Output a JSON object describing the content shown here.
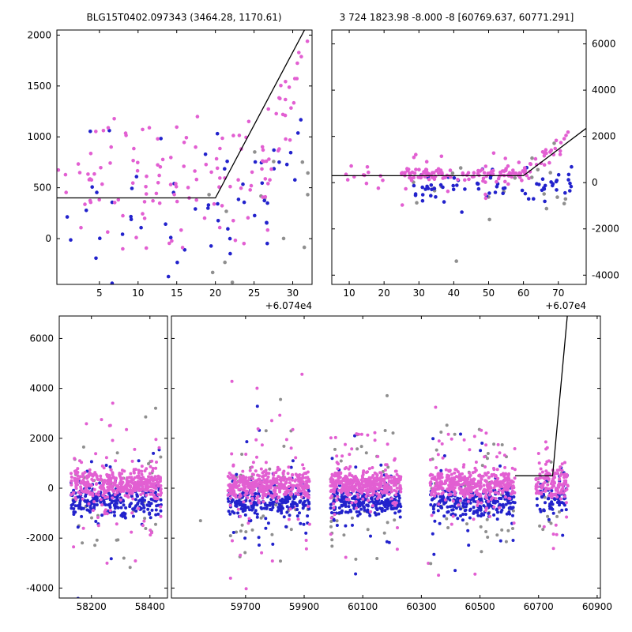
{
  "colors": {
    "magenta": "#e25fd2",
    "blue": "#2222cc",
    "gray": "#8f8f8f",
    "line": "#000000",
    "axis": "#000000"
  },
  "chart_data": [
    {
      "id": "top-left",
      "type": "scatter",
      "title": "BLG15T0402.097343 (3464.28, 1170.61)",
      "x_offset_label": "+6.074e4",
      "xlim": [
        -0.5,
        32.5
      ],
      "ylim": [
        -450,
        2050
      ],
      "xticks": [
        5,
        10,
        15,
        20,
        25,
        30
      ],
      "yticks": [
        0,
        500,
        1000,
        1500,
        2000
      ],
      "ylabel_side": "left",
      "grid": false,
      "model_line": [
        [
          -0.5,
          400
        ],
        [
          20,
          400
        ],
        [
          32.5,
          2190
        ]
      ],
      "clusters": [
        {
          "series": "gray",
          "kind": "band",
          "n": 14,
          "x": [
            19,
            32.5
          ],
          "mu": 350,
          "sigma": 450
        },
        {
          "series": "blue",
          "kind": "band",
          "n": 46,
          "x": [
            0,
            27
          ],
          "mu": 250,
          "sigma": 380
        },
        {
          "series": "blue",
          "kind": "trend",
          "n": 12,
          "p0": [
            26,
            250
          ],
          "p1": [
            32,
            1250
          ],
          "sigma": 200
        },
        {
          "series": "magenta",
          "kind": "band",
          "n": 110,
          "x": [
            -0.5,
            27
          ],
          "mu": 600,
          "sigma": 320
        },
        {
          "series": "magenta",
          "kind": "trend",
          "n": 30,
          "p0": [
            26,
            600
          ],
          "p1": [
            32,
            1900
          ],
          "sigma": 260
        }
      ]
    },
    {
      "id": "top-right",
      "type": "scatter",
      "title": "3 724 1823.98 -8.000 -8 [60769.637, 60771.291]",
      "x_offset_label": "+6.07e4",
      "xlim": [
        5,
        78
      ],
      "ylim": [
        -4400,
        6600
      ],
      "xticks": [
        10,
        20,
        30,
        40,
        50,
        60,
        70
      ],
      "yticks": [
        -4000,
        -2000,
        0,
        2000,
        4000,
        6000
      ],
      "ylabel_side": "right",
      "grid": false,
      "model_line": [
        [
          5,
          300
        ],
        [
          60,
          300
        ],
        [
          78,
          2350
        ]
      ],
      "clusters": [
        {
          "series": "gray",
          "kind": "band",
          "n": 22,
          "x": [
            28,
            75
          ],
          "mu": -200,
          "sigma": 1250
        },
        {
          "series": "blue",
          "kind": "band",
          "n": 70,
          "x": [
            28,
            74
          ],
          "mu": -100,
          "sigma": 300,
          "tail": 0.12,
          "tail_sigma": 900
        },
        {
          "series": "magenta",
          "kind": "band",
          "n": 12,
          "x": [
            8,
            25
          ],
          "mu": 300,
          "sigma": 250
        },
        {
          "series": "magenta",
          "kind": "band",
          "n": 130,
          "x": [
            25,
            62
          ],
          "mu": 350,
          "sigma": 160,
          "tail": 0.1,
          "tail_sigma": 700
        },
        {
          "series": "magenta",
          "kind": "trend",
          "n": 26,
          "p0": [
            60,
            400
          ],
          "p1": [
            73,
            1900
          ],
          "sigma": 250
        }
      ]
    },
    {
      "id": "bottom-left",
      "type": "scatter",
      "xlim": [
        58090,
        58460
      ],
      "ylim": [
        -4400,
        6900
      ],
      "xticks": [
        58200,
        58400
      ],
      "yticks": [
        -4000,
        -2000,
        0,
        2000,
        4000,
        6000
      ],
      "ylabel_side": "left",
      "grid": false,
      "clusters": [
        {
          "series": "gray",
          "kind": "band",
          "n": 45,
          "x": [
            58130,
            58440
          ],
          "mu": -300,
          "sigma": 1500
        },
        {
          "series": "blue",
          "kind": "band",
          "n": 260,
          "x": [
            58130,
            58440
          ],
          "mu": -550,
          "sigma": 300,
          "tail": 0.12,
          "tail_sigma": 1400
        },
        {
          "series": "magenta",
          "kind": "band",
          "n": 430,
          "x": [
            58130,
            58440
          ],
          "mu": 150,
          "sigma": 280,
          "tail": 0.13,
          "tail_sigma": 1500
        }
      ]
    },
    {
      "id": "bottom-right",
      "type": "scatter",
      "xlim": [
        59447,
        60911
      ],
      "ylim": [
        -4400,
        6900
      ],
      "xticks": [
        59700,
        59900,
        60100,
        60300,
        60500,
        60700,
        60900
      ],
      "yticks": [
        -4000,
        -2000,
        0,
        2000,
        4000,
        6000
      ],
      "ylabel_side": "none",
      "grid": false,
      "model_line": [
        [
          60620,
          500
        ],
        [
          60748,
          500
        ],
        [
          60798,
          6900
        ]
      ],
      "clusters": [
        {
          "series": "gray",
          "kind": "band",
          "n": 8,
          "x": [
            59470,
            60880
          ],
          "mu": -800,
          "sigma": 1600
        },
        {
          "series": "magenta",
          "kind": "band",
          "n": 6,
          "x": [
            59470,
            60880
          ],
          "mu": -500,
          "sigma": 1800
        },
        {
          "series": "gray",
          "kind": "band",
          "n": 45,
          "x": [
            59640,
            59920
          ],
          "mu": -300,
          "sigma": 1500
        },
        {
          "series": "blue",
          "kind": "band",
          "n": 260,
          "x": [
            59640,
            59920
          ],
          "mu": -550,
          "sigma": 300,
          "tail": 0.12,
          "tail_sigma": 1400
        },
        {
          "series": "magenta",
          "kind": "band",
          "n": 430,
          "x": [
            59640,
            59920
          ],
          "mu": 150,
          "sigma": 280,
          "tail": 0.13,
          "tail_sigma": 1500
        },
        {
          "series": "gray",
          "kind": "band",
          "n": 45,
          "x": [
            59990,
            60230
          ],
          "mu": -300,
          "sigma": 1500
        },
        {
          "series": "blue",
          "kind": "band",
          "n": 260,
          "x": [
            59990,
            60230
          ],
          "mu": -550,
          "sigma": 300,
          "tail": 0.12,
          "tail_sigma": 1400
        },
        {
          "series": "magenta",
          "kind": "band",
          "n": 430,
          "x": [
            59990,
            60230
          ],
          "mu": 150,
          "sigma": 280,
          "tail": 0.13,
          "tail_sigma": 1500
        },
        {
          "series": "gray",
          "kind": "band",
          "n": 45,
          "x": [
            60330,
            60620
          ],
          "mu": -300,
          "sigma": 1500
        },
        {
          "series": "blue",
          "kind": "band",
          "n": 260,
          "x": [
            60330,
            60620
          ],
          "mu": -550,
          "sigma": 300,
          "tail": 0.12,
          "tail_sigma": 1400
        },
        {
          "series": "magenta",
          "kind": "band",
          "n": 430,
          "x": [
            60330,
            60620
          ],
          "mu": 150,
          "sigma": 280,
          "tail": 0.13,
          "tail_sigma": 1500
        },
        {
          "series": "gray",
          "kind": "band",
          "n": 16,
          "x": [
            60690,
            60800
          ],
          "mu": -500,
          "sigma": 1200
        },
        {
          "series": "blue",
          "kind": "band",
          "n": 70,
          "x": [
            60690,
            60800
          ],
          "mu": -400,
          "sigma": 350,
          "tail": 0.1,
          "tail_sigma": 1000
        },
        {
          "series": "magenta",
          "kind": "band",
          "n": 140,
          "x": [
            60690,
            60800
          ],
          "mu": 250,
          "sigma": 350,
          "tail": 0.12,
          "tail_sigma": 1100
        }
      ]
    }
  ]
}
